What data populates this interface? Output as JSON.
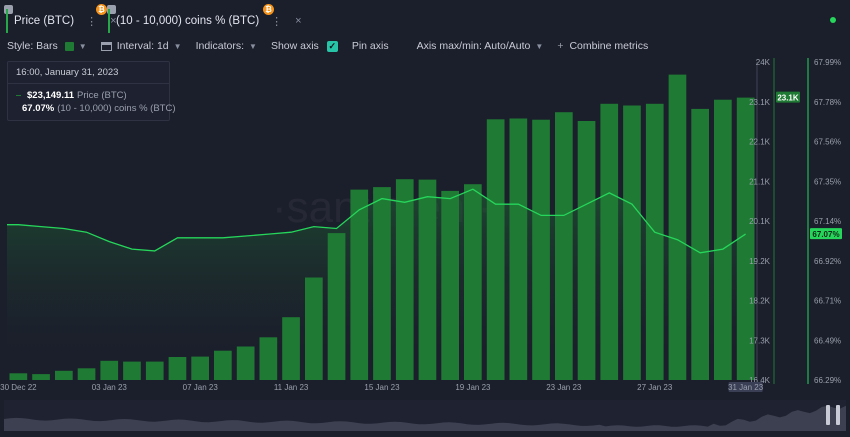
{
  "header": {
    "metrics": [
      {
        "label": "Price (BTC)",
        "more": "⋮",
        "close": "×"
      },
      {
        "label": "(10 - 10,000) coins % (BTC)",
        "more": "⋮",
        "close": "×"
      }
    ]
  },
  "toolbar": {
    "style_label": "Style: Bars",
    "interval_label": "Interval: 1d",
    "indicators_label": "Indicators:",
    "show_axis_label": "Show axis",
    "pin_axis_label": "Pin axis",
    "axis_minmax_label": "Axis max/min: Auto/Auto",
    "combine_label": "Combine metrics",
    "plus": "+"
  },
  "tooltip": {
    "date": "16:00, January 31, 2023",
    "price_value": "$23,149.11",
    "price_metric": "Price (BTC)",
    "pct_value": "67.07%",
    "pct_metric": "(10 - 10,000) coins % (BTC)"
  },
  "colors": {
    "bars": "#1f7a34",
    "line": "#26d65b",
    "background": "#1b1e2b"
  },
  "chart_data": {
    "type": "bar",
    "x": [
      "30 Dec 22",
      "31 Dec 22",
      "01 Jan 23",
      "02 Jan 23",
      "03 Jan 23",
      "04 Jan 23",
      "05 Jan 23",
      "06 Jan 23",
      "07 Jan 23",
      "08 Jan 23",
      "09 Jan 23",
      "10 Jan 23",
      "11 Jan 23",
      "12 Jan 23",
      "13 Jan 23",
      "14 Jan 23",
      "15 Jan 23",
      "16 Jan 23",
      "17 Jan 23",
      "18 Jan 23",
      "19 Jan 23",
      "20 Jan 23",
      "21 Jan 23",
      "22 Jan 23",
      "23 Jan 23",
      "24 Jan 23",
      "25 Jan 23",
      "26 Jan 23",
      "27 Jan 23",
      "28 Jan 23",
      "29 Jan 23",
      "30 Jan 23",
      "31 Jan 23"
    ],
    "x_tick_labels": [
      "30 Dec 22",
      "03 Jan 23",
      "07 Jan 23",
      "11 Jan 23",
      "15 Jan 23",
      "19 Jan 23",
      "23 Jan 23",
      "27 Jan 23",
      "31 Jan 23"
    ],
    "series": [
      {
        "name": "Price (BTC)",
        "type": "bar",
        "axis": "left",
        "values": [
          16560,
          16540,
          16620,
          16680,
          16860,
          16840,
          16840,
          16950,
          16960,
          17100,
          17200,
          17420,
          17900,
          18850,
          19910,
          20950,
          21010,
          21200,
          21190,
          20920,
          21080,
          22630,
          22650,
          22620,
          22800,
          22590,
          23000,
          22960,
          23000,
          23700,
          22880,
          23100,
          23149
        ]
      },
      {
        "name": "(10 - 10,000) coins % (BTC)",
        "type": "line",
        "axis": "right",
        "values": [
          67.12,
          67.11,
          67.1,
          67.08,
          67.03,
          66.99,
          66.98,
          67.05,
          67.05,
          67.05,
          67.06,
          67.07,
          67.08,
          67.11,
          67.1,
          67.2,
          67.26,
          67.24,
          67.27,
          67.26,
          67.31,
          67.23,
          67.23,
          67.17,
          67.17,
          67.23,
          67.29,
          67.23,
          67.08,
          67.04,
          66.97,
          66.99,
          67.07
        ]
      }
    ],
    "y_left": {
      "ticks": [
        "16.4K",
        "17.3K",
        "18.2K",
        "19.2K",
        "20.1K",
        "21.1K",
        "22.1K",
        "23.1K",
        "24K"
      ],
      "range": [
        16400,
        24000
      ]
    },
    "y_right": {
      "ticks": [
        "66.29%",
        "66.49%",
        "66.71%",
        "66.92%",
        "67.14%",
        "67.35%",
        "67.56%",
        "67.78%",
        "67.99%"
      ],
      "range": [
        66.29,
        67.99
      ]
    },
    "current_labels": {
      "left": "23.1K",
      "right": "67.07%"
    },
    "watermark": "·santiment·"
  }
}
